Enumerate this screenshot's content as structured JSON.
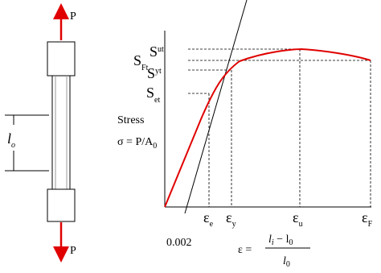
{
  "specimen": {
    "load_top": "P",
    "load_bottom": "P",
    "gauge_length": {
      "main": "l",
      "sub": "o"
    }
  },
  "chart": {
    "ylabel_line1": "Stress",
    "ylabel_line2_prefix": "σ = P/A",
    "ylabel_line2_sub": "0",
    "stress_labels": [
      {
        "main": "S",
        "sub": "ut"
      },
      {
        "main": "S",
        "sub": "Ft"
      },
      {
        "main": "S",
        "sub": "yt"
      },
      {
        "main": "S",
        "sub": "et"
      }
    ],
    "strain_labels": [
      {
        "main": "ε",
        "sub": "e"
      },
      {
        "main": "ε",
        "sub": "y"
      },
      {
        "main": "ε",
        "sub": "u"
      },
      {
        "main": "ε",
        "sub": "F"
      }
    ],
    "offset_label": "0.002",
    "strain_formula": {
      "lhs": "ε =",
      "num_l": "l",
      "num_i": "i",
      "num_rest": " − l",
      "num_0": "0",
      "den_l": "l",
      "den_0": "0"
    },
    "colors": {
      "curve": "#e00000",
      "arrow": "#e00000",
      "line": "#000000"
    }
  }
}
